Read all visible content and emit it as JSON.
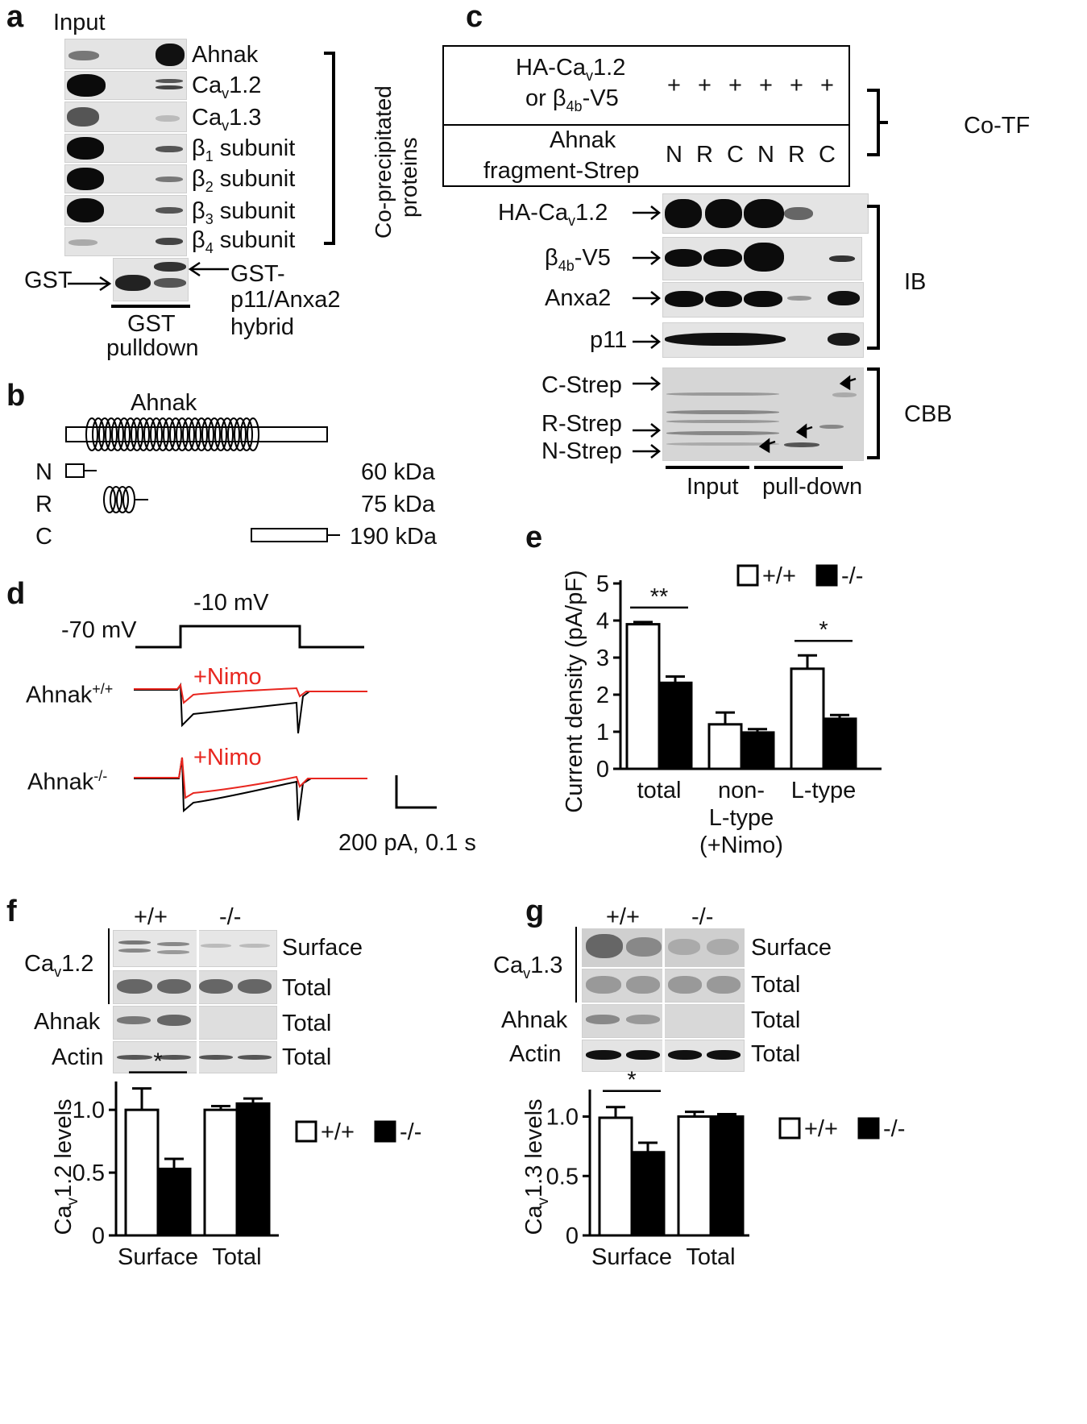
{
  "panels": {
    "a": "a",
    "b": "b",
    "c": "c",
    "d": "d",
    "e": "e",
    "f": "f",
    "g": "g"
  },
  "panel_a": {
    "input_label": "Input",
    "rows": [
      {
        "name": "Ahnak",
        "sub": ""
      },
      {
        "name": "Ca",
        "sub": "v",
        "suffix": "1.2"
      },
      {
        "name": "Ca",
        "sub": "v",
        "suffix": "1.3"
      },
      {
        "name": "β",
        "sub": "1",
        "suffix": " subunit"
      },
      {
        "name": "β",
        "sub": "2",
        "suffix": " subunit"
      },
      {
        "name": "β",
        "sub": "3",
        "suffix": " subunit"
      },
      {
        "name": "β",
        "sub": "4",
        "suffix": " subunit"
      }
    ],
    "side_label_1": "Co-precipitated",
    "side_label_2": "proteins",
    "gst_label": "GST",
    "hybrid_1": "GST-",
    "hybrid_2": "p11/Anxa2",
    "hybrid_3": "hybrid",
    "pulldown_1": "GST",
    "pulldown_2": "pulldown"
  },
  "panel_b": {
    "title": "Ahnak",
    "fragments": [
      {
        "label": "N",
        "kda": "60 kDa"
      },
      {
        "label": "R",
        "kda": "75 kDa"
      },
      {
        "label": "C",
        "kda": "190 kDa"
      }
    ]
  },
  "panel_c": {
    "row1_line1": "HA-Ca",
    "row1_sub1": "v",
    "row1_suffix1": "1.2",
    "row1_line2": "or β",
    "row1_sub2": "4b",
    "row1_suffix2": "-V5",
    "plus": [
      "+",
      "+",
      "+",
      "+",
      "+",
      "+"
    ],
    "row2_line1": "Ahnak",
    "row2_line2": "fragment-Strep",
    "lanes": [
      "N",
      "R",
      "C",
      "N",
      "R",
      "C"
    ],
    "cotf": "Co-TF",
    "blots": [
      {
        "label": "HA-Ca",
        "sub": "v",
        "suffix": "1.2"
      },
      {
        "label": "β",
        "sub": "4b",
        "suffix": "-V5"
      },
      {
        "label": "Anxa2",
        "sub": "",
        "suffix": ""
      },
      {
        "label": "p11",
        "sub": "",
        "suffix": ""
      }
    ],
    "ib": "IB",
    "cbb_labels": [
      "C-Strep",
      "R-Strep",
      "N-Strep"
    ],
    "cbb": "CBB",
    "input": "Input",
    "pulldown": "pull-down"
  },
  "panel_d": {
    "hold": "-70 mV",
    "step": "-10 mV",
    "nimo": "+Nimo",
    "wt": "Ahnak",
    "wt_sup": "+/+",
    "ko": "Ahnak",
    "ko_sup": "-/-",
    "scale": "200 pA, 0.1 s",
    "colors": {
      "nimo": "#e8261f",
      "control": "#000000"
    }
  },
  "chart_data": [
    {
      "type": "bar",
      "panel": "e",
      "categories": [
        "total",
        "non-L-type (+Nimo)",
        "L-type"
      ],
      "category_lines": [
        [
          "total"
        ],
        [
          "non-",
          "L-type",
          "(+Nimo)"
        ],
        [
          "L-type"
        ]
      ],
      "series": [
        {
          "name": "+/+",
          "values": [
            3.9,
            1.2,
            2.7
          ],
          "errors": [
            0.06,
            0.32,
            0.36
          ],
          "color": "#ffffff"
        },
        {
          "name": "-/-",
          "values": [
            2.32,
            0.98,
            1.35
          ],
          "errors": [
            0.17,
            0.09,
            0.1
          ],
          "color": "#000000"
        }
      ],
      "ylabel": "Current density (pA/pF)",
      "ylim": [
        0,
        5
      ],
      "yticks": [
        "0",
        "1",
        "2",
        "3",
        "4",
        "5"
      ],
      "significance": [
        {
          "category": 0,
          "text": "**"
        },
        {
          "category": 2,
          "text": "*"
        }
      ],
      "legend": "top-right"
    },
    {
      "type": "bar",
      "panel": "f",
      "categories": [
        "Surface",
        "Total"
      ],
      "series": [
        {
          "name": "+/+",
          "values": [
            1.0,
            1.0
          ],
          "errors": [
            0.17,
            0.03
          ],
          "color": "#ffffff"
        },
        {
          "name": "-/-",
          "values": [
            0.53,
            1.05
          ],
          "errors": [
            0.08,
            0.04
          ],
          "color": "#000000"
        }
      ],
      "ylabel_main": "Ca",
      "ylabel_sub": "v",
      "ylabel_rest": "1.2 levels",
      "ylim": [
        0,
        1.2
      ],
      "yticks": [
        "0",
        "0.5",
        "1.0"
      ],
      "significance": [
        {
          "category": 0,
          "text": "*"
        }
      ],
      "legend": "right"
    },
    {
      "type": "bar",
      "panel": "g",
      "categories": [
        "Surface",
        "Total"
      ],
      "series": [
        {
          "name": "+/+",
          "values": [
            0.99,
            1.0
          ],
          "errors": [
            0.09,
            0.04
          ],
          "color": "#ffffff"
        },
        {
          "name": "-/-",
          "values": [
            0.7,
            1.0
          ],
          "errors": [
            0.08,
            0.02
          ],
          "color": "#000000"
        }
      ],
      "ylabel_main": "Ca",
      "ylabel_sub": "v",
      "ylabel_rest": "1.3 levels",
      "ylim": [
        0,
        1.2
      ],
      "yticks": [
        "0",
        "0.5",
        "1.0"
      ],
      "significance": [
        {
          "category": 0,
          "text": "*"
        }
      ],
      "legend": "right"
    }
  ],
  "panel_f": {
    "wt": "+/+",
    "ko": "-/-",
    "cav": "Ca",
    "cav_sub": "v",
    "cav_suffix": "1.2",
    "surface": "Surface",
    "total": "Total",
    "ahnak": "Ahnak",
    "actin": "Actin"
  },
  "panel_g": {
    "wt": "+/+",
    "ko": "-/-",
    "cav": "Ca",
    "cav_sub": "v",
    "cav_suffix": "1.3",
    "surface": "Surface",
    "total": "Total",
    "ahnak": "Ahnak",
    "actin": "Actin"
  }
}
